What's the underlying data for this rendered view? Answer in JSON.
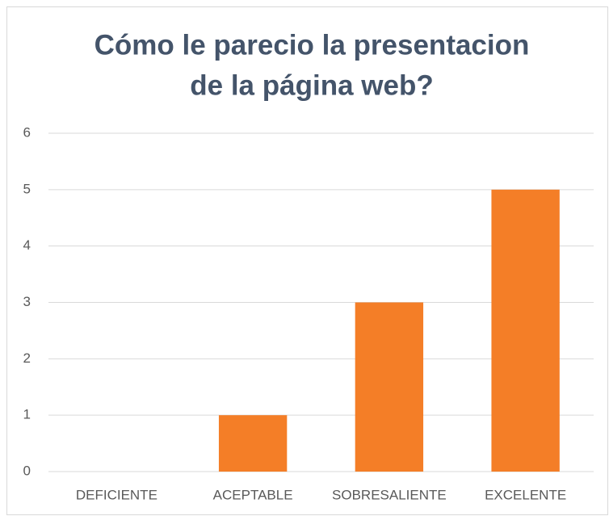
{
  "chart_data": {
    "type": "bar",
    "title": [
      "Cómo le  parecio la presentacion",
      "de la página web?"
    ],
    "categories": [
      "DEFICIENTE",
      "ACEPTABLE",
      "SOBRESALIENTE",
      "EXCELENTE"
    ],
    "values": [
      0,
      1,
      3,
      5
    ],
    "color": "#f47e27",
    "ylim": [
      0,
      6
    ],
    "yticks": [
      0,
      1,
      2,
      3,
      4,
      5,
      6
    ],
    "grid": true
  }
}
